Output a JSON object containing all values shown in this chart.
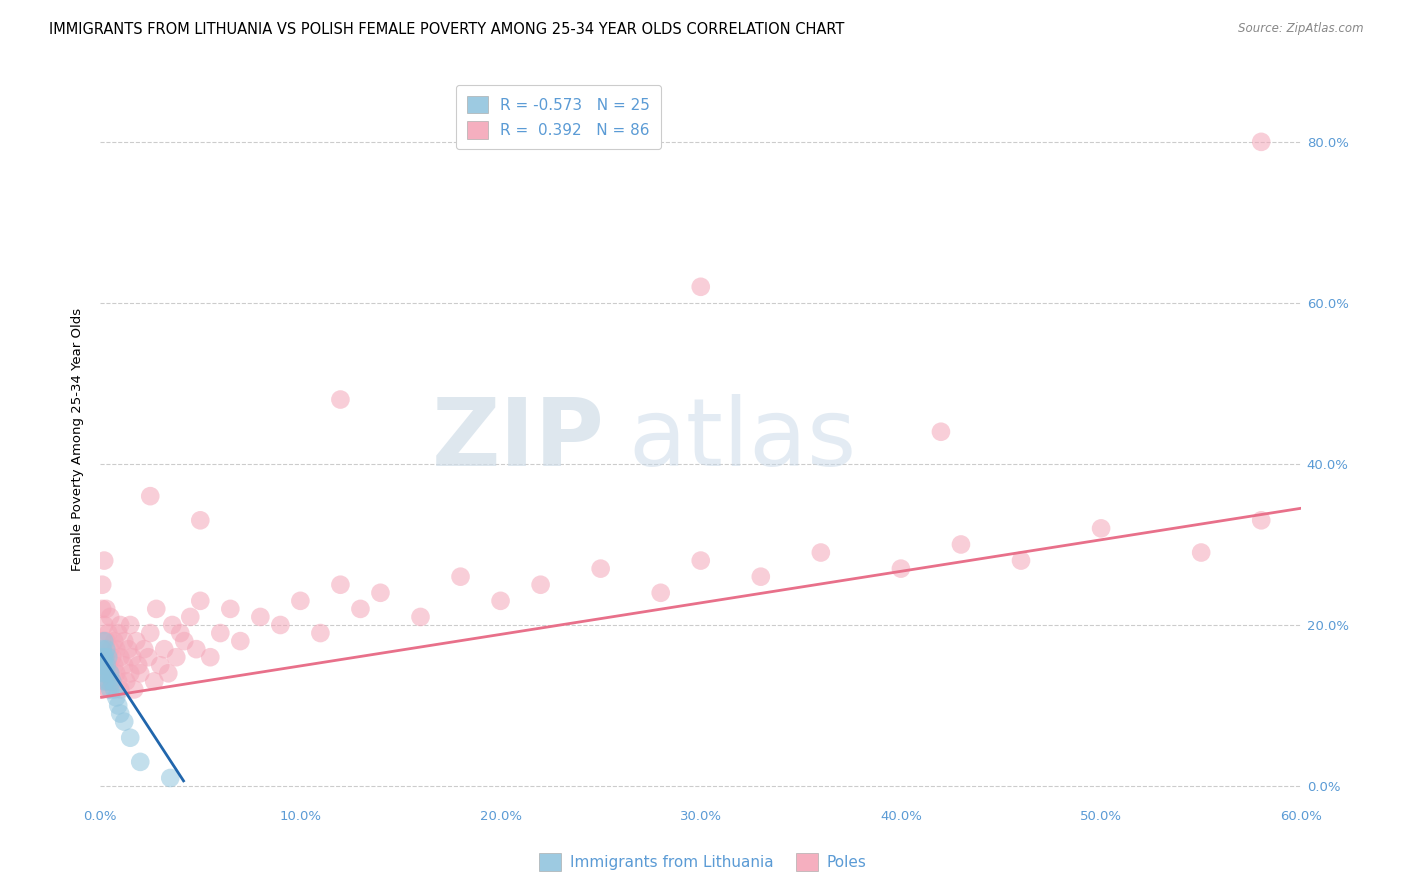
{
  "title": "IMMIGRANTS FROM LITHUANIA VS POLISH FEMALE POVERTY AMONG 25-34 YEAR OLDS CORRELATION CHART",
  "source": "Source: ZipAtlas.com",
  "ylabel": "Female Poverty Among 25-34 Year Olds",
  "legend_labels": [
    "Immigrants from Lithuania",
    "Poles"
  ],
  "blue_R": -0.573,
  "blue_N": 25,
  "pink_R": 0.392,
  "pink_N": 86,
  "blue_color": "#92c5de",
  "pink_color": "#f4a6b8",
  "blue_line_color": "#2166ac",
  "pink_line_color": "#e8708a",
  "watermark_zip": "ZIP",
  "watermark_atlas": "atlas",
  "xlim": [
    0.0,
    0.6
  ],
  "ylim": [
    -0.02,
    0.88
  ],
  "xticks": [
    0.0,
    0.1,
    0.2,
    0.3,
    0.4,
    0.5,
    0.6
  ],
  "yticks": [
    0.0,
    0.2,
    0.4,
    0.6,
    0.8
  ],
  "background_color": "#ffffff",
  "grid_color": "#cccccc",
  "title_fontsize": 10.5,
  "axis_label_fontsize": 9.5,
  "tick_fontsize": 9.5,
  "tick_color": "#5b9bd5",
  "marker_size": 180,
  "blue_scatter_x": [
    0.0005,
    0.001,
    0.0012,
    0.0015,
    0.0018,
    0.002,
    0.002,
    0.0022,
    0.0025,
    0.003,
    0.003,
    0.0032,
    0.004,
    0.004,
    0.005,
    0.005,
    0.006,
    0.007,
    0.008,
    0.009,
    0.01,
    0.012,
    0.015,
    0.02,
    0.035
  ],
  "blue_scatter_y": [
    0.16,
    0.15,
    0.17,
    0.14,
    0.16,
    0.15,
    0.18,
    0.13,
    0.16,
    0.14,
    0.17,
    0.15,
    0.13,
    0.16,
    0.14,
    0.12,
    0.13,
    0.12,
    0.11,
    0.1,
    0.09,
    0.08,
    0.06,
    0.03,
    0.01
  ],
  "pink_scatter_x": [
    0.001,
    0.001,
    0.001,
    0.001,
    0.002,
    0.002,
    0.002,
    0.002,
    0.003,
    0.003,
    0.003,
    0.004,
    0.004,
    0.004,
    0.005,
    0.005,
    0.005,
    0.006,
    0.006,
    0.007,
    0.007,
    0.008,
    0.008,
    0.009,
    0.009,
    0.01,
    0.01,
    0.01,
    0.012,
    0.012,
    0.013,
    0.014,
    0.015,
    0.015,
    0.016,
    0.017,
    0.018,
    0.019,
    0.02,
    0.022,
    0.024,
    0.025,
    0.027,
    0.028,
    0.03,
    0.032,
    0.034,
    0.036,
    0.038,
    0.04,
    0.042,
    0.045,
    0.048,
    0.05,
    0.055,
    0.06,
    0.065,
    0.07,
    0.08,
    0.09,
    0.1,
    0.11,
    0.12,
    0.13,
    0.14,
    0.16,
    0.18,
    0.2,
    0.22,
    0.25,
    0.28,
    0.3,
    0.33,
    0.36,
    0.4,
    0.43,
    0.46,
    0.5,
    0.55,
    0.58,
    0.025,
    0.05,
    0.12,
    0.3,
    0.42,
    0.58
  ],
  "pink_scatter_y": [
    0.18,
    0.22,
    0.12,
    0.25,
    0.14,
    0.2,
    0.16,
    0.28,
    0.13,
    0.18,
    0.22,
    0.15,
    0.19,
    0.12,
    0.17,
    0.14,
    0.21,
    0.16,
    0.13,
    0.18,
    0.15,
    0.14,
    0.17,
    0.13,
    0.19,
    0.16,
    0.12,
    0.2,
    0.15,
    0.18,
    0.13,
    0.17,
    0.14,
    0.2,
    0.16,
    0.12,
    0.18,
    0.15,
    0.14,
    0.17,
    0.16,
    0.19,
    0.13,
    0.22,
    0.15,
    0.17,
    0.14,
    0.2,
    0.16,
    0.19,
    0.18,
    0.21,
    0.17,
    0.23,
    0.16,
    0.19,
    0.22,
    0.18,
    0.21,
    0.2,
    0.23,
    0.19,
    0.25,
    0.22,
    0.24,
    0.21,
    0.26,
    0.23,
    0.25,
    0.27,
    0.24,
    0.28,
    0.26,
    0.29,
    0.27,
    0.3,
    0.28,
    0.32,
    0.29,
    0.33,
    0.36,
    0.33,
    0.48,
    0.62,
    0.44,
    0.8
  ],
  "pink_trend_x0": 0.0,
  "pink_trend_x1": 0.6,
  "pink_trend_y0": 0.11,
  "pink_trend_y1": 0.345,
  "blue_trend_x0": 0.0,
  "blue_trend_x1": 0.042,
  "blue_trend_y0": 0.165,
  "blue_trend_y1": 0.005
}
